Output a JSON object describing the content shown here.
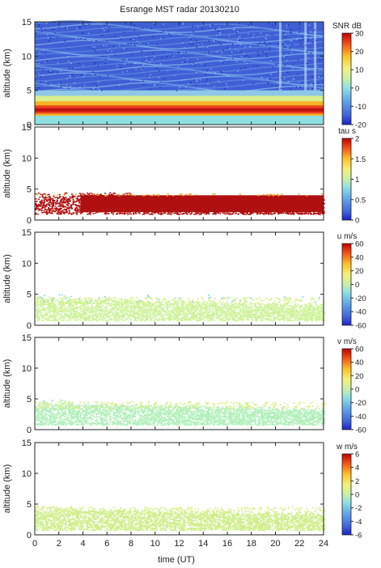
{
  "title": "Esrange MST radar 20130210",
  "chart_data": [
    {
      "id": "snr",
      "type": "heatmap",
      "ylabel": "altitude (km)",
      "yticks": [
        0,
        5,
        10,
        15
      ],
      "ylim": [
        0,
        15
      ],
      "colorbar": {
        "label": "SNR dB",
        "ticks": [
          -20,
          -10,
          0,
          10,
          20,
          30
        ],
        "range": [
          -20,
          30
        ]
      }
    },
    {
      "id": "tau",
      "type": "heatmap",
      "ylabel": "altitude (km)",
      "yticks": [
        0,
        5,
        10,
        15
      ],
      "ylim": [
        0,
        15
      ],
      "colorbar": {
        "label": "tau s",
        "ticks": [
          0,
          0.5,
          1,
          1.5,
          2
        ],
        "range": [
          0,
          2
        ]
      }
    },
    {
      "id": "u",
      "type": "heatmap",
      "ylabel": "altitude (km)",
      "yticks": [
        0,
        5,
        10,
        15
      ],
      "ylim": [
        0,
        15
      ],
      "colorbar": {
        "label": "u m/s",
        "ticks": [
          -60,
          -40,
          -20,
          0,
          20,
          40,
          60
        ],
        "range": [
          -60,
          60
        ]
      }
    },
    {
      "id": "v",
      "type": "heatmap",
      "ylabel": "altitude (km)",
      "yticks": [
        0,
        5,
        10,
        15
      ],
      "ylim": [
        0,
        15
      ],
      "colorbar": {
        "label": "v m/s",
        "ticks": [
          -60,
          -40,
          -20,
          0,
          20,
          40,
          60
        ],
        "range": [
          -60,
          60
        ]
      }
    },
    {
      "id": "w",
      "type": "heatmap",
      "ylabel": "altitude (km)",
      "yticks": [
        0,
        5,
        10,
        15
      ],
      "ylim": [
        0,
        15
      ],
      "colorbar": {
        "label": "w m/s",
        "ticks": [
          -6,
          -4,
          -2,
          0,
          2,
          4,
          6
        ],
        "range": [
          -6,
          6
        ]
      }
    }
  ],
  "xaxis": {
    "label": "time (UT)",
    "ticks": [
      0,
      2,
      4,
      6,
      8,
      10,
      12,
      14,
      16,
      18,
      20,
      22,
      24
    ],
    "xlim": [
      0,
      24
    ]
  }
}
